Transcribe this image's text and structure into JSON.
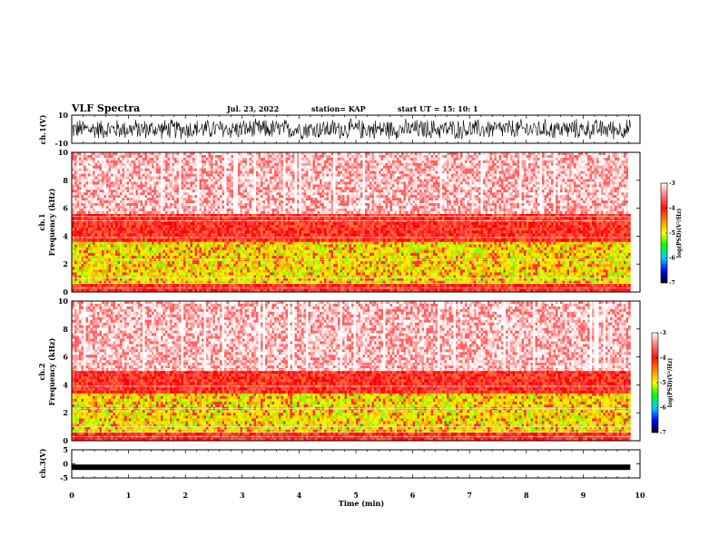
{
  "header": {
    "title": "VLF Spectra",
    "date": "Jul. 23, 2022",
    "station": "station= KAP",
    "start": "start UT = 15: 10: 1"
  },
  "chart_data": [
    {
      "type": "line",
      "name": "ch1-waveform",
      "ylabel": "ch.1(V)",
      "ylim": [
        -10,
        10
      ],
      "yticks": [
        "10",
        "-10"
      ],
      "x_range_min": [
        0,
        9.83
      ],
      "amplitude_typical": [
        -8,
        8
      ]
    },
    {
      "type": "heatmap",
      "name": "ch1-spectrogram",
      "ylabel_line1": "ch.1",
      "ylabel_line2": "Frequency (kHz)",
      "ylim": [
        0,
        10
      ],
      "yticks": [
        "0",
        "2",
        "4",
        "6",
        "8",
        "10"
      ],
      "x_range_min": [
        0,
        9.83
      ],
      "bands_khz": [
        {
          "from": 0.0,
          "to": 0.6,
          "level": "red"
        },
        {
          "from": 0.6,
          "to": 3.6,
          "level": "yellow-green"
        },
        {
          "from": 3.6,
          "to": 5.6,
          "level": "red"
        },
        {
          "from": 5.6,
          "to": 10.0,
          "level": "light-red"
        }
      ],
      "colorbar": {
        "label": "log(PSD)(V²/Hz)",
        "ticks": [
          "-3",
          "-4",
          "-5",
          "-6",
          "-7"
        ],
        "range": [
          -7,
          -3
        ]
      }
    },
    {
      "type": "heatmap",
      "name": "ch2-spectrogram",
      "ylabel_line1": "ch.2",
      "ylabel_line2": "Frequency (kHz)",
      "ylim": [
        0,
        10
      ],
      "yticks": [
        "0",
        "2",
        "4",
        "6",
        "8",
        "10"
      ],
      "x_range_min": [
        0,
        9.83
      ],
      "bands_khz": [
        {
          "from": 0.0,
          "to": 0.6,
          "level": "red"
        },
        {
          "from": 0.6,
          "to": 3.4,
          "level": "yellow-green"
        },
        {
          "from": 3.4,
          "to": 5.0,
          "level": "red"
        },
        {
          "from": 5.0,
          "to": 10.0,
          "level": "light-red"
        }
      ],
      "colorbar": {
        "label": "log(PSD)(V²/Hz)",
        "ticks": [
          "-3",
          "-4",
          "-5",
          "-6",
          "-7"
        ],
        "range": [
          -7,
          -3
        ]
      }
    },
    {
      "type": "line",
      "name": "ch3-waveform",
      "ylabel": "ch.3(V)",
      "ylim": [
        -5,
        5
      ],
      "yticks": [
        "5",
        "0",
        "-5"
      ],
      "x_range_min": [
        0,
        9.83
      ],
      "level_v": -1.2
    }
  ],
  "x_axis": {
    "label": "Time (min)",
    "ticks": [
      "0",
      "1",
      "2",
      "3",
      "4",
      "5",
      "6",
      "7",
      "8",
      "9",
      "10"
    ],
    "xlim": [
      0,
      10
    ]
  },
  "colors": {
    "colorbar_stops": [
      "#ffffff",
      "#ff2020",
      "#ffff00",
      "#00ff00",
      "#00c0ff",
      "#0000ff",
      "#000000"
    ]
  }
}
